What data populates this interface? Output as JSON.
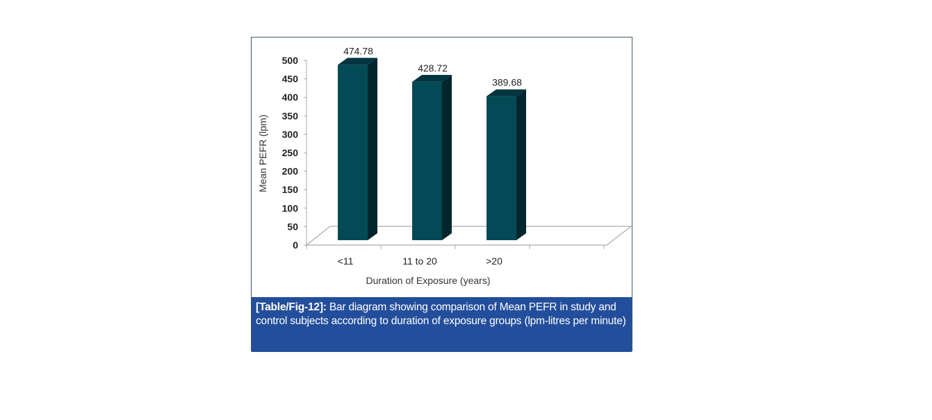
{
  "chart_data": {
    "type": "bar",
    "style": "3d-column",
    "categories": [
      "<11",
      "11 to 20",
      ">20"
    ],
    "values": [
      474.78,
      428.72,
      389.68
    ],
    "data_labels": [
      "474.78",
      "428.72",
      "389.68"
    ],
    "xlabel": "Duration of Exposure (years)",
    "ylabel": "Mean PEFR (lpm)",
    "ylim": [
      0,
      500
    ],
    "yticks": [
      0,
      50,
      100,
      150,
      200,
      250,
      300,
      350,
      400,
      450,
      500
    ],
    "grid": false,
    "bar_color": "#034a56",
    "bar_side_color": "#02262d"
  },
  "caption": {
    "label": "[Table/Fig-12]:",
    "text": " Bar diagram showing comparison of Mean PEFR in study and control subjects according to duration of exposure groups (lpm-litres per minute)"
  }
}
